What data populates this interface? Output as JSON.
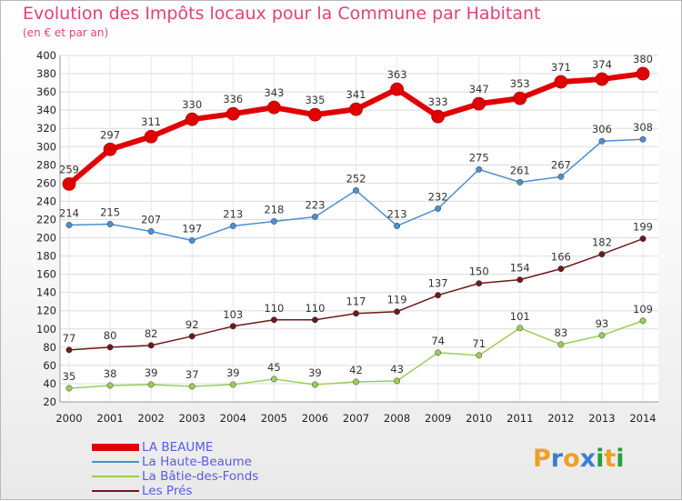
{
  "title": "Evolution des Impôts locaux pour la Commune par Habitant",
  "subtitle": "(en € et par an)",
  "chart_data": {
    "type": "line",
    "x": [
      "2000",
      "2001",
      "2002",
      "2003",
      "2004",
      "2005",
      "2006",
      "2007",
      "2008",
      "2009",
      "2010",
      "2011",
      "2012",
      "2013",
      "2014"
    ],
    "y_ticks": [
      "20",
      "40",
      "60",
      "80",
      "100",
      "120",
      "140",
      "160",
      "180",
      "200",
      "220",
      "240",
      "260",
      "280",
      "300",
      "320",
      "340",
      "360",
      "380",
      "400"
    ],
    "ylim": [
      20,
      400
    ],
    "grid": true,
    "legend_position": "bottom-left",
    "series": [
      {
        "name": "LA BEAUME",
        "color": "#e00000",
        "values": [
          259,
          297,
          311,
          330,
          336,
          343,
          335,
          341,
          363,
          333,
          347,
          353,
          371,
          374,
          380
        ]
      },
      {
        "name": "La Haute-Beaume",
        "color": "#4d8fcf",
        "values": [
          214,
          215,
          207,
          197,
          213,
          218,
          223,
          252,
          213,
          232,
          275,
          261,
          267,
          306,
          308
        ]
      },
      {
        "name": "La Bâtie-des-Fonds",
        "color": "#9acd5a",
        "values": [
          35,
          38,
          39,
          37,
          39,
          45,
          39,
          42,
          43,
          74,
          71,
          101,
          83,
          93,
          109
        ]
      },
      {
        "name": "Les Prés",
        "color": "#6b1a1a",
        "values": [
          77,
          80,
          82,
          92,
          103,
          110,
          110,
          117,
          119,
          137,
          150,
          154,
          166,
          182,
          199
        ]
      }
    ]
  },
  "logo": {
    "letters": [
      "P",
      "r",
      "o",
      "x",
      "i",
      "t",
      "i"
    ],
    "colors": [
      "#f0a020",
      "#3a7fd0",
      "#f0a020",
      "#3a7fd0",
      "#2a9e3a",
      "#f0a020",
      "#2a9e3a"
    ]
  }
}
